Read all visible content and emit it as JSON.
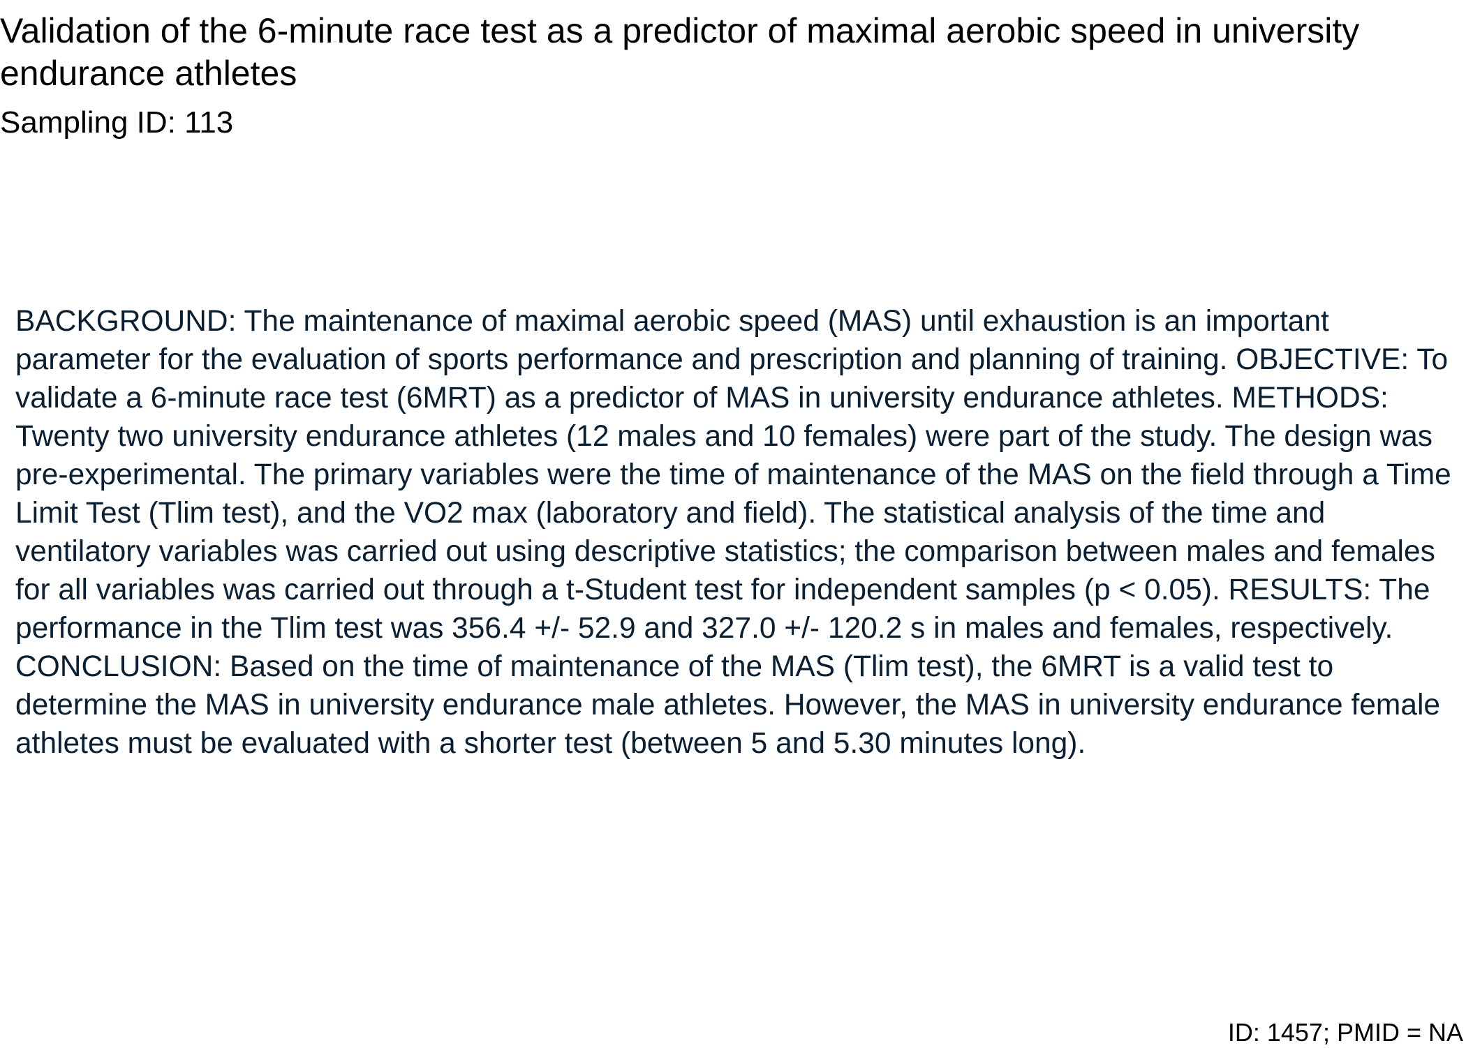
{
  "paper": {
    "title": "Validation of the 6-minute race test as a predictor of maximal aerobic speed in university endurance athletes",
    "sampling_id": "Sampling ID: 113",
    "abstract": "BACKGROUND: The maintenance of maximal aerobic speed (MAS) until exhaustion is an important parameter for the evaluation of sports performance and prescription and planning of training. OBJECTIVE: To validate a 6-minute race test (6MRT) as a predictor of MAS in university endurance athletes. METHODS: Twenty two university endurance athletes (12 males and 10 females) were part of the study. The design was pre-experimental. The primary variables were the time of maintenance of the MAS on the field through a Time Limit Test (Tlim test), and the VO2 max (laboratory and field). The statistical analysis of the time and ventilatory variables was carried out using descriptive statistics; the comparison between males and females for all variables was carried out through a t-Student test for independent samples (p < 0.05). RESULTS: The performance in the Tlim test was 356.4 +/- 52.9 and 327.0 +/- 120.2 s in males and females, respectively. CONCLUSION: Based on the time of maintenance of the MAS (Tlim test), the 6MRT is a valid test to determine the MAS in university endurance male athletes. However, the MAS in university endurance female athletes must be evaluated with a shorter test (between 5 and 5.30 minutes long).",
    "footer_id": "ID: 1457; PMID = NA"
  },
  "colors": {
    "title_text": "#000000",
    "abstract_text": "#0b1f33",
    "background": "#ffffff"
  }
}
